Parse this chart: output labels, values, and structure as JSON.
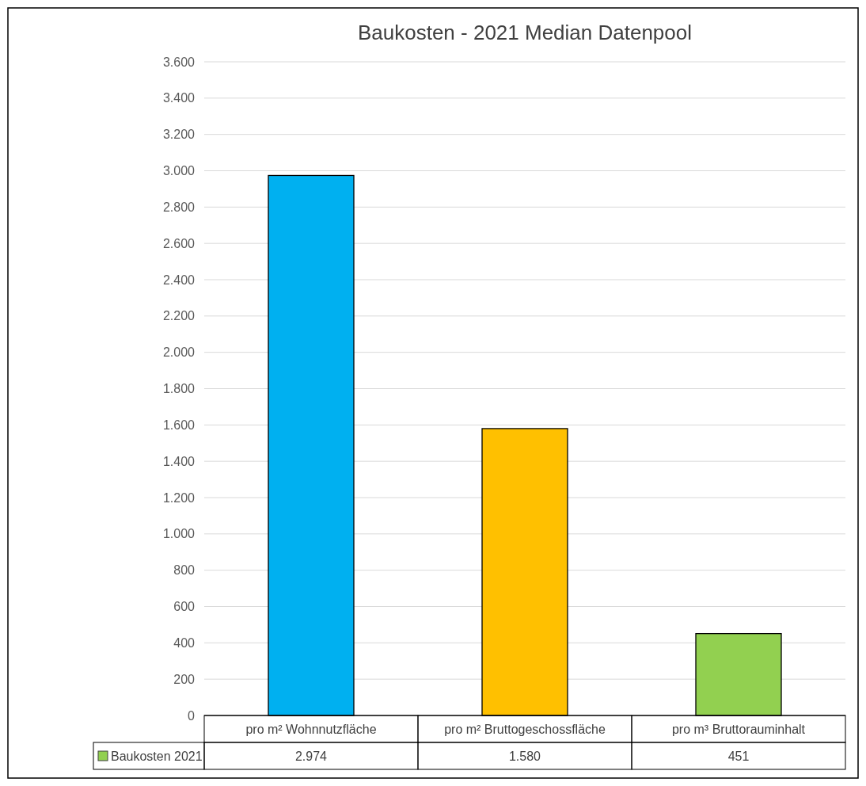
{
  "chart_data": {
    "type": "bar",
    "title": "Baukosten - 2021 Median Datenpool",
    "categories": [
      "pro m² Wohnnutzfläche",
      "pro m² Bruttogeschossfläche",
      "pro m³ Bruttorauminhalt"
    ],
    "series": [
      {
        "name": "Baukosten 2021",
        "color": "#92d050",
        "colors": [
          "#00b0f0",
          "#ffc000",
          "#92d050"
        ],
        "values": [
          2974,
          1580,
          451
        ],
        "value_labels": [
          "2.974",
          "1.580",
          "451"
        ]
      }
    ],
    "ylim": [
      0,
      3600
    ],
    "yticks": [
      0,
      200,
      400,
      600,
      800,
      {
        "value": 1000,
        "label": "1.000"
      },
      {
        "value": 1200,
        "label": "1.200"
      },
      {
        "value": 1400,
        "label": "1.400"
      },
      {
        "value": 1600,
        "label": "1.600"
      },
      {
        "value": 1800,
        "label": "1.800"
      },
      {
        "value": 2000,
        "label": "2.000"
      },
      {
        "value": 2200,
        "label": "2.200"
      },
      {
        "value": 2400,
        "label": "2.400"
      },
      {
        "value": 2600,
        "label": "2.600"
      },
      {
        "value": 2800,
        "label": "2.800"
      },
      {
        "value": 3000,
        "label": "3.000"
      },
      {
        "value": 3200,
        "label": "3.200"
      },
      {
        "value": 3400,
        "label": "3.400"
      },
      {
        "value": 3600,
        "label": "3.600"
      }
    ],
    "grid": "y",
    "legend": "bottom"
  }
}
